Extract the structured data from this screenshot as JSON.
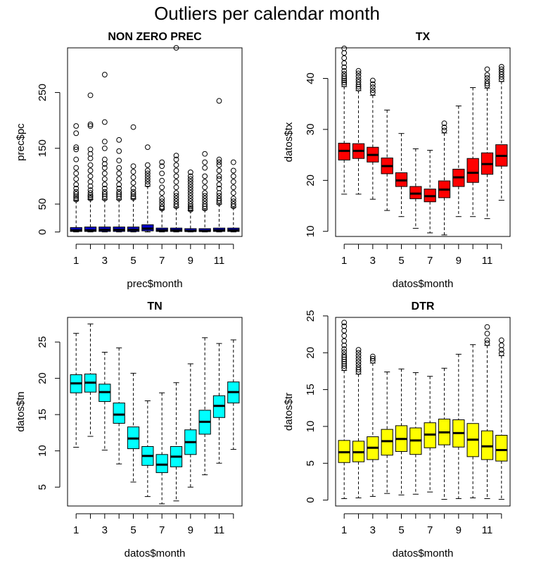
{
  "figure": {
    "title": "Outliers per calendar month"
  },
  "chart_data": [
    {
      "type": "boxplot",
      "title": "NON ZERO PREC",
      "xlabel": "prec$month",
      "ylabel": "prec$pc",
      "fill": "#0000cc",
      "ylim": [
        -8,
        330
      ],
      "yticks": [
        0,
        50,
        150,
        250
      ],
      "xticks": [
        1,
        3,
        5,
        7,
        9,
        11
      ],
      "categories": [
        1,
        2,
        3,
        4,
        5,
        6,
        7,
        8,
        9,
        10,
        11,
        12
      ],
      "boxes": [
        {
          "month": 1,
          "lowwhisk": 0.1,
          "q1": 1,
          "median": 3,
          "q3": 8,
          "upwhisk": 56,
          "outliers": [
            58,
            61,
            64,
            68,
            72,
            78,
            85,
            95,
            105,
            115,
            130,
            148,
            152,
            177,
            190
          ]
        },
        {
          "month": 2,
          "lowwhisk": 0.1,
          "q1": 1,
          "median": 3,
          "q3": 9,
          "upwhisk": 58,
          "outliers": [
            60,
            63,
            66,
            70,
            75,
            82,
            90,
            100,
            110,
            120,
            132,
            140,
            148,
            190,
            193,
            245
          ]
        },
        {
          "month": 3,
          "lowwhisk": 0.1,
          "q1": 1,
          "median": 4,
          "q3": 9,
          "upwhisk": 58,
          "outliers": [
            60,
            64,
            68,
            72,
            78,
            85,
            95,
            105,
            115,
            122,
            130,
            150,
            162,
            197,
            282
          ]
        },
        {
          "month": 4,
          "lowwhisk": 0.1,
          "q1": 1,
          "median": 4,
          "q3": 9,
          "upwhisk": 58,
          "outliers": [
            60,
            64,
            68,
            72,
            78,
            85,
            95,
            105,
            115,
            128,
            145,
            165
          ]
        },
        {
          "month": 5,
          "lowwhisk": 0.1,
          "q1": 1,
          "median": 4,
          "q3": 9,
          "upwhisk": 59,
          "outliers": [
            61,
            64,
            68,
            72,
            78,
            88,
            98,
            108,
            118,
            188
          ]
        },
        {
          "month": 6,
          "lowwhisk": 0.1,
          "q1": 2,
          "median": 6,
          "q3": 13,
          "upwhisk": 82,
          "outliers": [
            85,
            90,
            95,
            100,
            105,
            110,
            120,
            152
          ]
        },
        {
          "month": 7,
          "lowwhisk": 0.1,
          "q1": 1,
          "median": 3,
          "q3": 7,
          "upwhisk": 40,
          "outliers": [
            42,
            45,
            50,
            55,
            60,
            70,
            80,
            92,
            105,
            118,
            125
          ]
        },
        {
          "month": 8,
          "lowwhisk": 0.1,
          "q1": 1,
          "median": 3,
          "q3": 7,
          "upwhisk": 44,
          "outliers": [
            46,
            50,
            55,
            60,
            65,
            70,
            80,
            90,
            100,
            110,
            120,
            130,
            137,
            330
          ]
        },
        {
          "month": 9,
          "lowwhisk": 0.1,
          "q1": 1,
          "median": 2,
          "q3": 6,
          "upwhisk": 38,
          "outliers": [
            40,
            43,
            46,
            50,
            55,
            60,
            65,
            70,
            75,
            80,
            85,
            90,
            95,
            100,
            107
          ]
        },
        {
          "month": 10,
          "lowwhisk": 0.1,
          "q1": 1,
          "median": 2,
          "q3": 6,
          "upwhisk": 40,
          "outliers": [
            42,
            46,
            50,
            55,
            60,
            65,
            70,
            80,
            90,
            100,
            115,
            125,
            140
          ]
        },
        {
          "month": 11,
          "lowwhisk": 0.1,
          "q1": 1,
          "median": 3,
          "q3": 7,
          "upwhisk": 50,
          "outliers": [
            52,
            56,
            60,
            65,
            70,
            78,
            85,
            95,
            100,
            110,
            120,
            125,
            130,
            235
          ]
        },
        {
          "month": 12,
          "lowwhisk": 0.1,
          "q1": 1,
          "median": 3,
          "q3": 7,
          "upwhisk": 44,
          "outliers": [
            46,
            50,
            55,
            60,
            70,
            80,
            90,
            100,
            110,
            125
          ]
        }
      ]
    },
    {
      "type": "boxplot",
      "title": "TX",
      "xlabel": "datos$month",
      "ylabel": "datos$tx",
      "fill": "#ff0000",
      "ylim": [
        9,
        46
      ],
      "yticks": [
        10,
        20,
        30,
        40
      ],
      "xticks": [
        1,
        3,
        5,
        7,
        9,
        11
      ],
      "categories": [
        1,
        2,
        3,
        4,
        5,
        6,
        7,
        8,
        9,
        10,
        11,
        12
      ],
      "boxes": [
        {
          "month": 1,
          "lowwhisk": 17.3,
          "q1": 24,
          "median": 25.8,
          "q3": 27.3,
          "upwhisk": 38.4,
          "outliers": [
            38.8,
            39.2,
            39.6,
            40.0,
            40.4,
            40.9,
            41.5,
            42.2,
            43.0,
            44.0,
            45.0,
            45.9
          ]
        },
        {
          "month": 2,
          "lowwhisk": 17.3,
          "q1": 24.3,
          "median": 25.8,
          "q3": 27.2,
          "upwhisk": 37.6,
          "outliers": [
            38.0,
            38.4,
            38.8,
            39.3,
            39.8,
            40.4,
            41.0,
            41.5
          ]
        },
        {
          "month": 3,
          "lowwhisk": 16.3,
          "q1": 23.6,
          "median": 25.0,
          "q3": 26.5,
          "upwhisk": 36.7,
          "outliers": [
            37.2,
            37.7,
            38.3,
            38.9,
            39.6
          ]
        },
        {
          "month": 4,
          "lowwhisk": 14.1,
          "q1": 21.3,
          "median": 22.8,
          "q3": 24.4,
          "upwhisk": 33.8,
          "outliers": []
        },
        {
          "month": 5,
          "lowwhisk": 12.9,
          "q1": 18.8,
          "median": 20.0,
          "q3": 21.5,
          "upwhisk": 29.2,
          "outliers": []
        },
        {
          "month": 6,
          "lowwhisk": 10.6,
          "q1": 16.4,
          "median": 17.4,
          "q3": 18.8,
          "upwhisk": 26.2,
          "outliers": []
        },
        {
          "month": 7,
          "lowwhisk": 9.7,
          "q1": 15.8,
          "median": 16.9,
          "q3": 18.3,
          "upwhisk": 25.9,
          "outliers": []
        },
        {
          "month": 8,
          "lowwhisk": 9.3,
          "q1": 16.6,
          "median": 18.2,
          "q3": 19.9,
          "upwhisk": 29.3,
          "outliers": [
            29.8,
            30.4,
            31.2
          ]
        },
        {
          "month": 9,
          "lowwhisk": 12.9,
          "q1": 18.8,
          "median": 20.6,
          "q3": 22.2,
          "upwhisk": 34.6,
          "outliers": []
        },
        {
          "month": 10,
          "lowwhisk": 12.9,
          "q1": 19.6,
          "median": 21.5,
          "q3": 24.3,
          "upwhisk": 38.2,
          "outliers": []
        },
        {
          "month": 11,
          "lowwhisk": 12.5,
          "q1": 21.2,
          "median": 23.2,
          "q3": 25.4,
          "upwhisk": 38.1,
          "outliers": [
            38.6,
            39.0,
            39.5,
            40.1,
            40.7,
            41.8
          ]
        },
        {
          "month": 12,
          "lowwhisk": 16.1,
          "q1": 22.8,
          "median": 24.8,
          "q3": 27.0,
          "upwhisk": 39.4,
          "outliers": [
            39.8,
            40.3,
            40.8,
            41.3,
            41.8,
            42.3
          ]
        }
      ]
    },
    {
      "type": "boxplot",
      "title": "TN",
      "xlabel": "datos$month",
      "ylabel": "datos$tn",
      "fill": "#00ffff",
      "ylim": [
        2.4,
        28.4
      ],
      "yticks": [
        5,
        10,
        15,
        20,
        25
      ],
      "xticks": [
        1,
        3,
        5,
        7,
        9,
        11
      ],
      "categories": [
        1,
        2,
        3,
        4,
        5,
        6,
        7,
        8,
        9,
        10,
        11,
        12
      ],
      "boxes": [
        {
          "month": 1,
          "lowwhisk": 10.5,
          "q1": 18.0,
          "median": 19.3,
          "q3": 20.5,
          "upwhisk": 26.2,
          "outliers": []
        },
        {
          "month": 2,
          "lowwhisk": 12.0,
          "q1": 18.1,
          "median": 19.4,
          "q3": 20.6,
          "upwhisk": 27.5,
          "outliers": []
        },
        {
          "month": 3,
          "lowwhisk": 10.1,
          "q1": 16.8,
          "median": 18.1,
          "q3": 19.2,
          "upwhisk": 23.6,
          "outliers": []
        },
        {
          "month": 4,
          "lowwhisk": 8.2,
          "q1": 13.8,
          "median": 15.0,
          "q3": 16.6,
          "upwhisk": 24.2,
          "outliers": []
        },
        {
          "month": 5,
          "lowwhisk": 5.7,
          "q1": 10.3,
          "median": 11.7,
          "q3": 13.3,
          "upwhisk": 20.7,
          "outliers": []
        },
        {
          "month": 6,
          "lowwhisk": 3.7,
          "q1": 8.0,
          "median": 9.3,
          "q3": 10.6,
          "upwhisk": 16.9,
          "outliers": []
        },
        {
          "month": 7,
          "lowwhisk": 2.7,
          "q1": 7.0,
          "median": 8.1,
          "q3": 9.5,
          "upwhisk": 18.0,
          "outliers": []
        },
        {
          "month": 8,
          "lowwhisk": 3.1,
          "q1": 7.8,
          "median": 9.2,
          "q3": 10.6,
          "upwhisk": 19.4,
          "outliers": []
        },
        {
          "month": 9,
          "lowwhisk": 5.0,
          "q1": 9.5,
          "median": 11.2,
          "q3": 12.9,
          "upwhisk": 22.0,
          "outliers": []
        },
        {
          "month": 10,
          "lowwhisk": 6.7,
          "q1": 12.3,
          "median": 14.0,
          "q3": 15.6,
          "upwhisk": 25.6,
          "outliers": []
        },
        {
          "month": 11,
          "lowwhisk": 8.3,
          "q1": 14.6,
          "median": 16.2,
          "q3": 17.6,
          "upwhisk": 24.8,
          "outliers": []
        },
        {
          "month": 12,
          "lowwhisk": 10.2,
          "q1": 16.6,
          "median": 18.1,
          "q3": 19.5,
          "upwhisk": 25.3,
          "outliers": []
        }
      ]
    },
    {
      "type": "boxplot",
      "title": "DTR",
      "xlabel": "datos$month",
      "ylabel": "datos$tr",
      "fill": "#ffff00",
      "ylim": [
        -0.8,
        24.8
      ],
      "yticks": [
        0,
        5,
        10,
        15,
        20,
        25
      ],
      "xticks": [
        1,
        3,
        5,
        7,
        9,
        11
      ],
      "categories": [
        1,
        2,
        3,
        4,
        5,
        6,
        7,
        8,
        9,
        10,
        11,
        12
      ],
      "boxes": [
        {
          "month": 1,
          "lowwhisk": 0.2,
          "q1": 5.1,
          "median": 6.5,
          "q3": 8.1,
          "upwhisk": 17.6,
          "outliers": [
            17.9,
            18.2,
            18.5,
            18.8,
            19.1,
            19.4,
            19.7,
            20.1,
            20.5,
            21.0,
            21.6,
            22.3,
            23.0,
            23.6,
            24.1
          ]
        },
        {
          "month": 2,
          "lowwhisk": 0.3,
          "q1": 5.2,
          "median": 6.5,
          "q3": 8.0,
          "upwhisk": 17.1,
          "outliers": [
            17.4,
            17.7,
            18.0,
            18.4,
            18.8,
            19.2,
            19.6,
            20.0,
            20.4
          ]
        },
        {
          "month": 3,
          "lowwhisk": 0.5,
          "q1": 5.5,
          "median": 7.1,
          "q3": 8.6,
          "upwhisk": 18.6,
          "outliers": [
            18.9,
            19.2,
            19.5
          ]
        },
        {
          "month": 4,
          "lowwhisk": 0.9,
          "q1": 6.1,
          "median": 8.0,
          "q3": 9.6,
          "upwhisk": 17.4,
          "outliers": []
        },
        {
          "month": 5,
          "lowwhisk": 0.7,
          "q1": 6.6,
          "median": 8.3,
          "q3": 10.1,
          "upwhisk": 17.8,
          "outliers": []
        },
        {
          "month": 6,
          "lowwhisk": 0.8,
          "q1": 6.2,
          "median": 8.1,
          "q3": 9.8,
          "upwhisk": 17.3,
          "outliers": []
        },
        {
          "month": 7,
          "lowwhisk": 1.1,
          "q1": 7.1,
          "median": 8.9,
          "q3": 10.5,
          "upwhisk": 16.8,
          "outliers": []
        },
        {
          "month": 8,
          "lowwhisk": 0.1,
          "q1": 7.5,
          "median": 9.2,
          "q3": 11.0,
          "upwhisk": 17.9,
          "outliers": []
        },
        {
          "month": 9,
          "lowwhisk": 0.2,
          "q1": 7.2,
          "median": 9.1,
          "q3": 10.9,
          "upwhisk": 19.8,
          "outliers": []
        },
        {
          "month": 10,
          "lowwhisk": 0.3,
          "q1": 5.9,
          "median": 8.2,
          "q3": 10.4,
          "upwhisk": 21.1,
          "outliers": []
        },
        {
          "month": 11,
          "lowwhisk": 0.2,
          "q1": 5.5,
          "median": 7.3,
          "q3": 9.4,
          "upwhisk": 21.0,
          "outliers": [
            21.3,
            21.7,
            22.6,
            23.5
          ]
        },
        {
          "month": 12,
          "lowwhisk": 0.1,
          "q1": 5.3,
          "median": 6.8,
          "q3": 8.8,
          "upwhisk": 19.6,
          "outliers": [
            19.9,
            20.4,
            21.0,
            21.7
          ]
        }
      ]
    }
  ]
}
